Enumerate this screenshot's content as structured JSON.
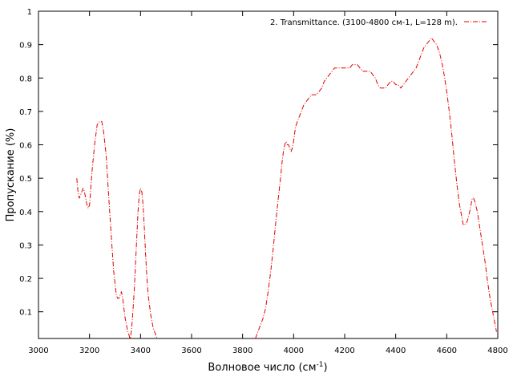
{
  "chart_data": {
    "type": "line",
    "xlabel": "Волновое число (см",
    "xlabel_sup": "-1",
    "xlabel_close": ")",
    "ylabel": "Пропускание (%)",
    "xlim": [
      3000,
      4800
    ],
    "ylim": [
      0.02,
      1.0
    ],
    "x_ticks": [
      3000,
      3200,
      3400,
      3600,
      3800,
      4000,
      4200,
      4400,
      4600,
      4800
    ],
    "y_ticks": [
      0.1,
      0.2,
      0.3,
      0.4,
      0.5,
      0.6,
      0.7,
      0.8,
      0.9,
      1
    ],
    "x_tick_labels": [
      "3000",
      "3200",
      "3400",
      "3600",
      "3800",
      "4000",
      "4200",
      "4400",
      "4600",
      "4800"
    ],
    "y_tick_labels": [
      "0.1",
      "0.2",
      "0.3",
      "0.4",
      "0.5",
      "0.6",
      "0.7",
      "0.8",
      "0.9",
      "1"
    ],
    "grid": false,
    "legend_position": "top-right",
    "series": [
      {
        "name": "2. Transmittance. (3100-4800 см-1, L=128 m).",
        "color": "#e00000",
        "line_style": "dash-dot",
        "segments": [
          {
            "x": [
              3150,
              3155,
              3160,
              3165,
              3170,
              3175,
              3180,
              3185,
              3190,
              3195,
              3200,
              3210,
              3220,
              3230,
              3240,
              3248,
              3255,
              3265,
              3275,
              3285,
              3295,
              3305,
              3310,
              3315,
              3320,
              3325,
              3330,
              3335,
              3340,
              3345,
              3350,
              3355,
              3358,
              3360,
              3365,
              3370,
              3375,
              3380,
              3385,
              3390,
              3395,
              3400,
              3405,
              3410,
              3415,
              3420,
              3425,
              3430,
              3440,
              3450,
              3460,
              3465
            ],
            "y": [
              0.5,
              0.46,
              0.44,
              0.45,
              0.46,
              0.47,
              0.46,
              0.44,
              0.42,
              0.41,
              0.42,
              0.52,
              0.6,
              0.66,
              0.67,
              0.67,
              0.64,
              0.57,
              0.45,
              0.33,
              0.22,
              0.15,
              0.14,
              0.14,
              0.15,
              0.16,
              0.14,
              0.11,
              0.08,
              0.06,
              0.04,
              0.03,
              0.02,
              0.02,
              0.05,
              0.1,
              0.16,
              0.24,
              0.32,
              0.4,
              0.45,
              0.47,
              0.46,
              0.42,
              0.35,
              0.27,
              0.2,
              0.15,
              0.09,
              0.05,
              0.03,
              0.02
            ]
          },
          {
            "x": [
              3850,
              3860,
              3870,
              3880,
              3890,
              3900,
              3910,
              3920,
              3930,
              3940,
              3950,
              3955,
              3960,
              3965,
              3970,
              3975,
              3980,
              3985,
              3990,
              3995,
              4000,
              4005,
              4010,
              4020,
              4030,
              4040,
              4050,
              4060,
              4070,
              4080,
              4090,
              4100,
              4110,
              4120,
              4130,
              4140,
              4150,
              4160,
              4170,
              4180,
              4190,
              4200,
              4210,
              4220,
              4230,
              4240,
              4250,
              4260,
              4270,
              4280,
              4290,
              4300,
              4310,
              4320,
              4330,
              4340,
              4350,
              4360,
              4370,
              4380,
              4390,
              4400,
              4410,
              4420,
              4430,
              4440,
              4450,
              4460,
              4470,
              4480,
              4490,
              4500,
              4510,
              4520,
              4530,
              4540,
              4550,
              4560,
              4570,
              4580,
              4590,
              4600,
              4610,
              4620,
              4630,
              4640,
              4650,
              4660,
              4665,
              4670,
              4680,
              4690,
              4700,
              4705,
              4710,
              4720,
              4730,
              4740,
              4750,
              4760,
              4770,
              4780,
              4790,
              4795
            ],
            "y": [
              0.02,
              0.04,
              0.06,
              0.08,
              0.11,
              0.16,
              0.22,
              0.29,
              0.37,
              0.44,
              0.51,
              0.55,
              0.58,
              0.6,
              0.61,
              0.6,
              0.6,
              0.59,
              0.58,
              0.59,
              0.61,
              0.64,
              0.66,
              0.68,
              0.7,
              0.72,
              0.73,
              0.74,
              0.75,
              0.75,
              0.75,
              0.76,
              0.77,
              0.79,
              0.8,
              0.81,
              0.82,
              0.83,
              0.83,
              0.83,
              0.83,
              0.83,
              0.83,
              0.83,
              0.84,
              0.84,
              0.84,
              0.83,
              0.82,
              0.82,
              0.82,
              0.82,
              0.81,
              0.8,
              0.78,
              0.77,
              0.77,
              0.77,
              0.78,
              0.79,
              0.79,
              0.78,
              0.78,
              0.77,
              0.78,
              0.79,
              0.8,
              0.81,
              0.82,
              0.83,
              0.85,
              0.87,
              0.89,
              0.9,
              0.91,
              0.92,
              0.91,
              0.9,
              0.88,
              0.85,
              0.81,
              0.76,
              0.7,
              0.63,
              0.55,
              0.48,
              0.42,
              0.38,
              0.36,
              0.36,
              0.37,
              0.4,
              0.44,
              0.44,
              0.43,
              0.4,
              0.35,
              0.3,
              0.25,
              0.19,
              0.14,
              0.1,
              0.06,
              0.04
            ]
          }
        ]
      }
    ]
  }
}
